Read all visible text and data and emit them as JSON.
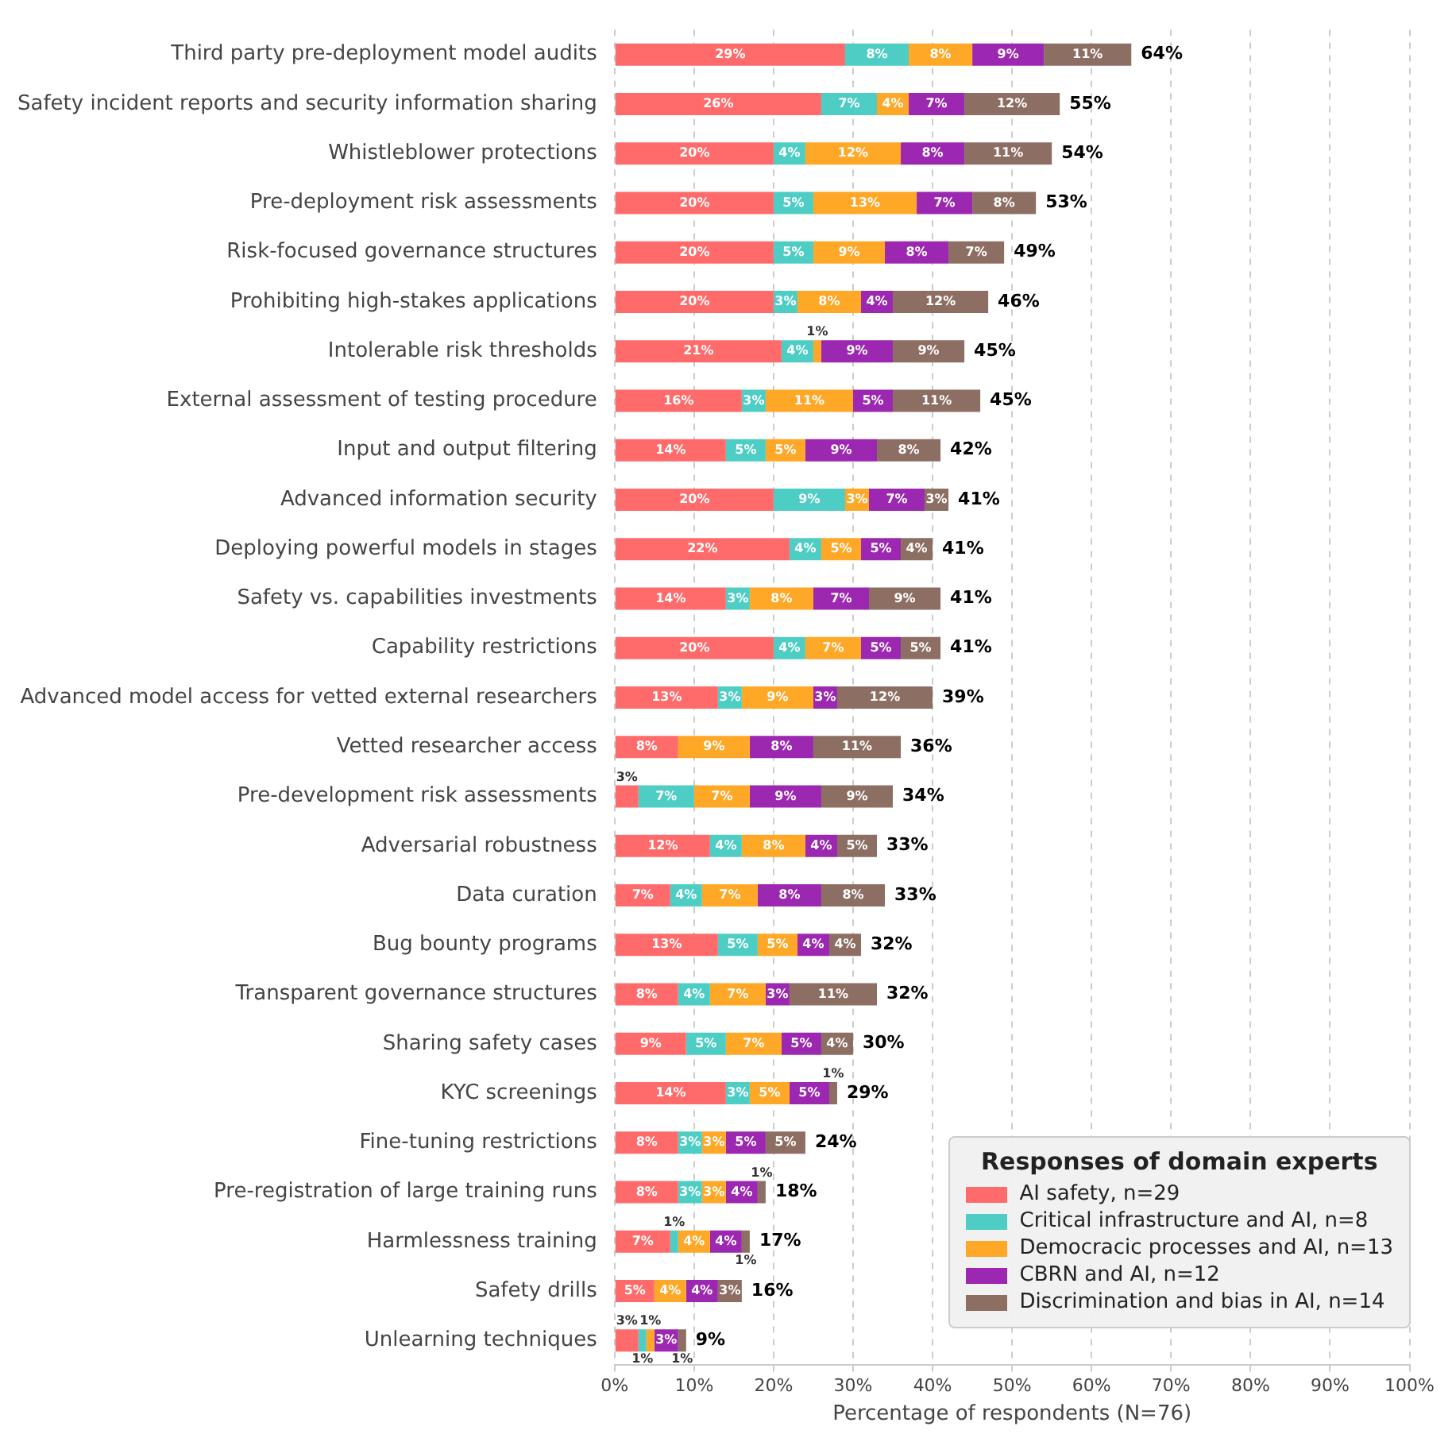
{
  "chart_data": {
    "type": "bar",
    "orientation": "horizontal",
    "stacked": true,
    "xlabel": "Percentage of respondents (N=76)",
    "legend_title": "Responses of domain experts",
    "legend": "bottom right",
    "grid": "x",
    "categories": [
      "Third party pre-deployment model audits",
      "Safety incident reports and security information sharing",
      "Whistleblower protections",
      "Pre-deployment risk assessments",
      "Risk-focused governance structures",
      "Prohibiting high-stakes applications",
      "Intolerable risk thresholds",
      "External assessment of testing procedure",
      "Input and output filtering",
      "Advanced information security",
      "Deploying powerful models in stages",
      "Safety vs. capabilities investments",
      "Capability restrictions",
      "Advanced model access for vetted external researchers",
      "Vetted researcher access",
      "Pre-development risk assessments",
      "Adversarial robustness",
      "Data curation",
      "Bug bounty programs",
      "Transparent governance structures",
      "Sharing safety cases",
      "KYC screenings",
      "Fine-tuning restrictions",
      "Pre-registration of large training runs",
      "Harmlessness training",
      "Safety drills",
      "Unlearning techniques"
    ],
    "series": [
      {
        "name": "AI safety, n=29",
        "color": "#ff6b6b",
        "values": [
          29,
          26,
          20,
          20,
          20,
          20,
          21,
          16,
          14,
          20,
          22,
          14,
          20,
          13,
          8,
          3,
          12,
          7,
          13,
          8,
          9,
          14,
          8,
          8,
          7,
          5,
          3
        ],
        "value_labels": [
          "29%",
          "26%",
          "20%",
          "20%",
          "20%",
          "20%",
          "21%",
          "16%",
          "14%",
          "20%",
          "22%",
          "14%",
          "20%",
          "13%",
          "8%",
          "3%",
          "12%",
          "7%",
          "13%",
          "8%",
          "9%",
          "14%",
          "8%",
          "8%",
          "7%",
          "5%",
          "3%"
        ]
      },
      {
        "name": "Critical infrastructure and AI, n=8",
        "color": "#4ecdc4",
        "values": [
          8,
          7,
          4,
          5,
          5,
          3,
          4,
          3,
          5,
          9,
          4,
          3,
          4,
          3,
          0,
          7,
          4,
          4,
          5,
          4,
          5,
          3,
          3,
          3,
          1,
          0,
          1
        ],
        "value_labels": [
          "8%",
          "7%",
          "4%",
          "5%",
          "5%",
          "3%",
          "4%",
          "3%",
          "5%",
          "9%",
          "4%",
          "3%",
          "4%",
          "3%",
          null,
          "7%",
          "4%",
          "4%",
          "5%",
          "4%",
          "5%",
          "3%",
          "3%",
          "3%",
          "1%",
          null,
          "1%"
        ]
      },
      {
        "name": "Democracic processes and AI, n=13",
        "color": "#ffa726",
        "values": [
          8,
          4,
          12,
          13,
          9,
          8,
          1,
          11,
          5,
          3,
          5,
          8,
          7,
          9,
          9,
          7,
          8,
          7,
          5,
          7,
          7,
          5,
          3,
          3,
          4,
          4,
          1
        ],
        "value_labels": [
          "8%",
          "4%",
          "12%",
          "13%",
          "9%",
          "8%",
          "1%",
          "11%",
          "5%",
          "3%",
          "5%",
          "8%",
          "7%",
          "9%",
          "9%",
          "7%",
          "8%",
          "7%",
          "5%",
          "7%",
          "7%",
          "5%",
          "3%",
          "3%",
          "4%",
          "4%",
          "1%"
        ]
      },
      {
        "name": "CBRN and AI, n=12",
        "color": "#9c27b0",
        "values": [
          9,
          7,
          8,
          7,
          8,
          4,
          9,
          5,
          9,
          7,
          5,
          7,
          5,
          3,
          8,
          9,
          4,
          8,
          4,
          3,
          5,
          5,
          5,
          4,
          4,
          4,
          3
        ],
        "value_labels": [
          "9%",
          "7%",
          "8%",
          "7%",
          "8%",
          "4%",
          "9%",
          "5%",
          "9%",
          "7%",
          "5%",
          "7%",
          "5%",
          "3%",
          "8%",
          "9%",
          "4%",
          "8%",
          "4%",
          "3%",
          "5%",
          "5%",
          "5%",
          "4%",
          "4%",
          "4%",
          "3%"
        ]
      },
      {
        "name": "Discrimination and bias in AI, n=14",
        "color": "#8d6e63",
        "values": [
          11,
          12,
          11,
          8,
          7,
          12,
          9,
          11,
          8,
          3,
          4,
          9,
          5,
          12,
          11,
          9,
          5,
          8,
          4,
          11,
          4,
          1,
          5,
          1,
          1,
          3,
          1
        ],
        "value_labels": [
          "11%",
          "12%",
          "11%",
          "8%",
          "7%",
          "12%",
          "9%",
          "11%",
          "8%",
          "3%",
          "4%",
          "9%",
          "5%",
          "12%",
          "11%",
          "9%",
          "5%",
          "8%",
          "4%",
          "11%",
          "4%",
          "1%",
          "5%",
          "1%",
          "1%",
          "3%",
          "1%"
        ]
      }
    ],
    "totals": [
      "64%",
      "55%",
      "54%",
      "53%",
      "49%",
      "46%",
      "45%",
      "45%",
      "42%",
      "41%",
      "41%",
      "41%",
      "41%",
      "39%",
      "36%",
      "34%",
      "33%",
      "33%",
      "32%",
      "32%",
      "30%",
      "29%",
      "24%",
      "18%",
      "17%",
      "16%",
      "9%"
    ],
    "xlim": [
      0,
      100
    ],
    "xticks": [
      {
        "value": 0,
        "label": "0%"
      },
      {
        "value": 10,
        "label": "10%"
      },
      {
        "value": 20,
        "label": "20%"
      },
      {
        "value": 30,
        "label": "30%"
      },
      {
        "value": 40,
        "label": "40%"
      },
      {
        "value": 50,
        "label": "50%"
      },
      {
        "value": 60,
        "label": "60%"
      },
      {
        "value": 70,
        "label": "70%"
      },
      {
        "value": 80,
        "label": "80%"
      },
      {
        "value": 90,
        "label": "90%"
      },
      {
        "value": 100,
        "label": "100%"
      }
    ]
  }
}
